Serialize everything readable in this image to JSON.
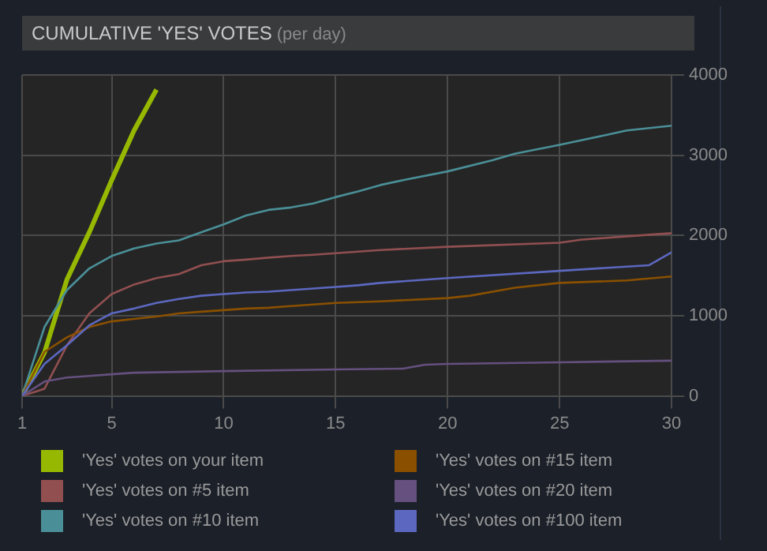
{
  "chart_data": {
    "type": "line",
    "title": "CUMULATIVE 'YES' VOTES",
    "subtitle": "(per day)",
    "xlim": [
      1,
      30
    ],
    "xticks": [
      1,
      5,
      10,
      15,
      20,
      25,
      30
    ],
    "ylim": [
      0,
      4000
    ],
    "yticks": [
      0,
      1000,
      2000,
      3000,
      4000
    ],
    "grid": true,
    "legend": "bottom",
    "marker": "none",
    "series": [
      {
        "name": "'Yes' votes on your item",
        "color": "#97b800",
        "x": [
          1,
          2,
          3,
          4,
          5,
          6,
          7
        ],
        "values": [
          0,
          540,
          1450,
          2040,
          2690,
          3310,
          3820
        ]
      },
      {
        "name": "'Yes' votes on #5 item",
        "color": "#914f50",
        "x": [
          1,
          2,
          3,
          4,
          5,
          6,
          7,
          8,
          9,
          10,
          11,
          12,
          13,
          14,
          15,
          16,
          17,
          20,
          25,
          26,
          28,
          30
        ],
        "values": [
          0,
          90,
          630,
          1030,
          1270,
          1390,
          1470,
          1520,
          1630,
          1680,
          1700,
          1725,
          1745,
          1760,
          1780,
          1800,
          1820,
          1860,
          1910,
          1950,
          1990,
          2030
        ]
      },
      {
        "name": "'Yes' votes on #10 item",
        "color": "#4a8f97",
        "x": [
          1,
          2,
          3,
          4,
          5,
          6,
          7,
          8,
          9,
          10,
          11,
          12,
          13,
          14,
          15,
          16,
          17,
          18,
          20,
          22,
          23,
          25,
          27,
          28,
          30
        ],
        "values": [
          0,
          860,
          1320,
          1590,
          1745,
          1840,
          1900,
          1940,
          2040,
          2140,
          2250,
          2320,
          2350,
          2400,
          2480,
          2550,
          2630,
          2690,
          2800,
          2940,
          3020,
          3130,
          3250,
          3310,
          3370
        ]
      },
      {
        "name": "'Yes' votes on #15 item",
        "color": "#8a5000",
        "x": [
          1,
          2,
          3,
          4,
          5,
          6,
          7,
          8,
          9,
          10,
          11,
          12,
          13,
          14,
          15,
          16,
          17,
          20,
          21,
          23,
          25,
          28,
          30
        ],
        "values": [
          0,
          550,
          730,
          860,
          930,
          960,
          990,
          1030,
          1050,
          1070,
          1090,
          1100,
          1120,
          1140,
          1160,
          1170,
          1180,
          1220,
          1250,
          1350,
          1410,
          1440,
          1490
        ]
      },
      {
        "name": "'Yes' votes on #20 item",
        "color": "#65507f",
        "x": [
          1,
          2,
          3,
          4,
          5,
          6,
          10,
          15,
          18,
          19,
          20,
          25,
          30
        ],
        "values": [
          0,
          180,
          230,
          250,
          270,
          290,
          310,
          330,
          340,
          390,
          400,
          420,
          440
        ]
      },
      {
        "name": "'Yes' votes on #100 item",
        "color": "#5c68c0",
        "x": [
          1,
          2,
          3,
          4,
          5,
          6,
          7,
          8,
          9,
          10,
          11,
          12,
          13,
          14,
          15,
          16,
          17,
          20,
          25,
          29,
          30
        ],
        "values": [
          0,
          400,
          630,
          880,
          1030,
          1090,
          1160,
          1210,
          1250,
          1270,
          1290,
          1300,
          1320,
          1340,
          1360,
          1380,
          1410,
          1470,
          1560,
          1630,
          1790
        ]
      }
    ]
  }
}
